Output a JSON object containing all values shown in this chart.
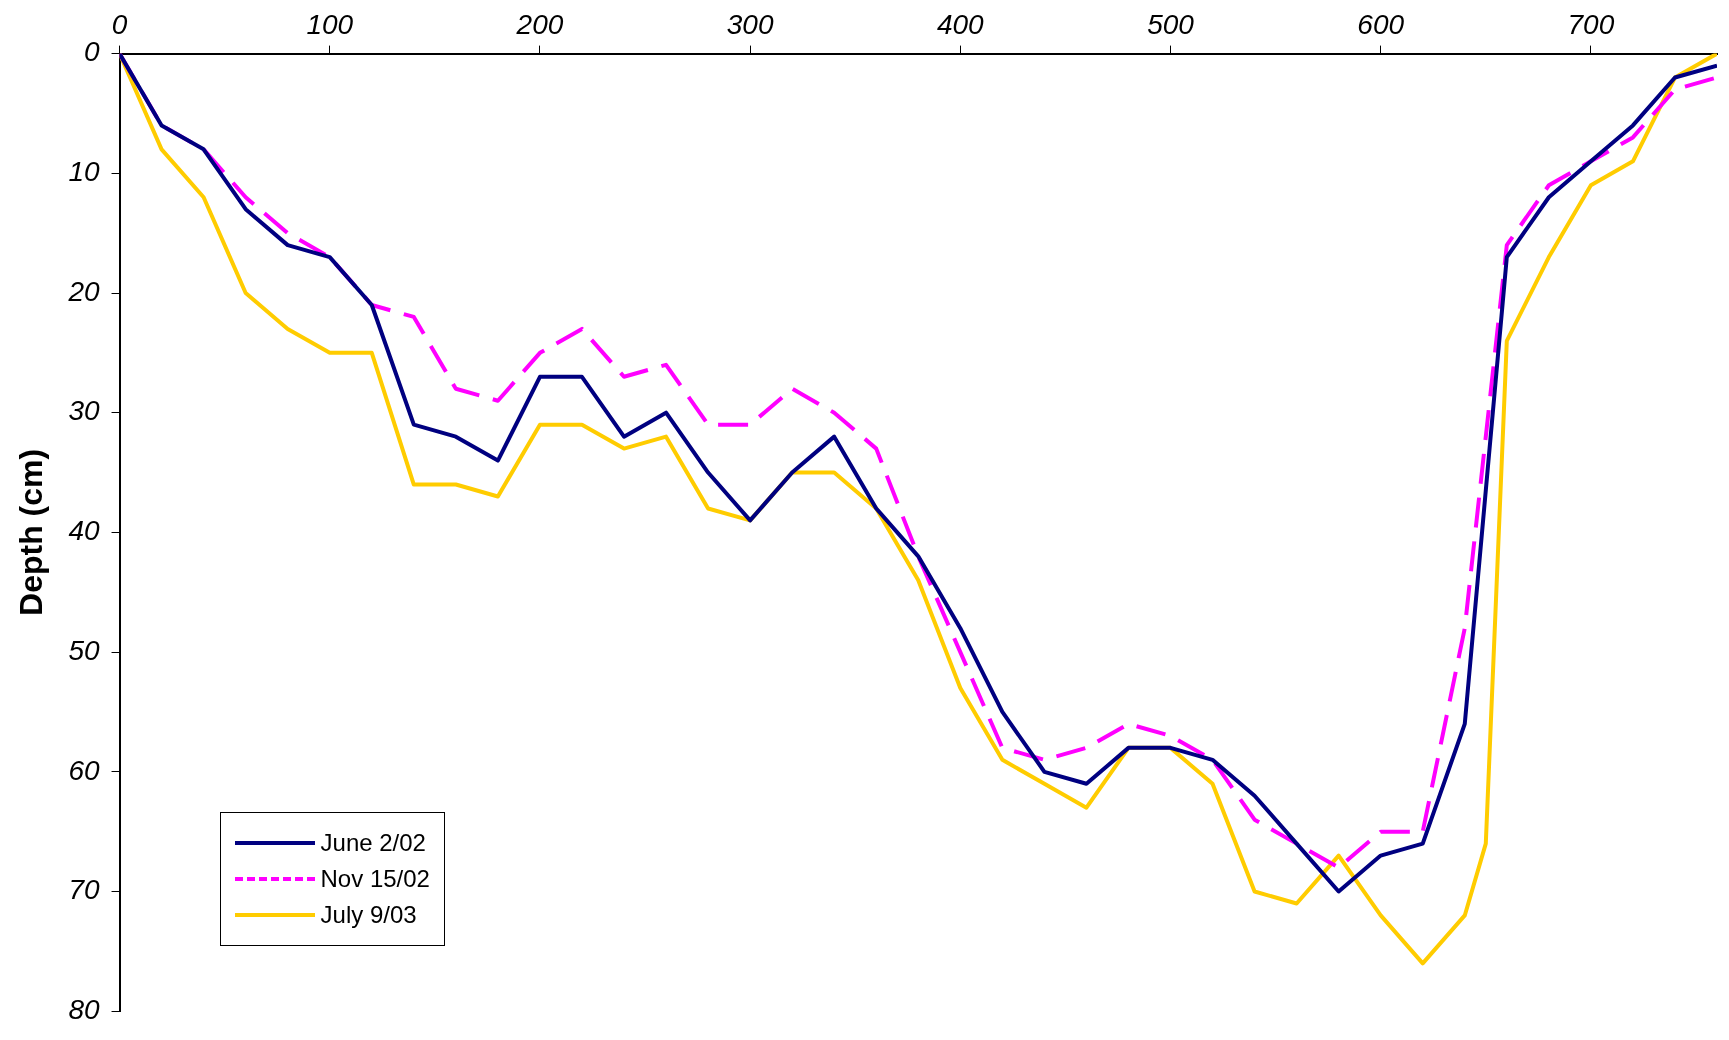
{
  "chart_data": {
    "type": "line",
    "ylabel": "Depth (cm)",
    "xlim": [
      0,
      760
    ],
    "xticks": [
      0,
      100,
      200,
      300,
      400,
      500,
      600,
      700
    ],
    "ylim": [
      80,
      0
    ],
    "yticks": [
      0,
      10,
      20,
      30,
      40,
      50,
      60,
      70,
      80
    ],
    "grid": false,
    "legend": "bottom left",
    "marker": "none",
    "line_style": "solid",
    "series": [
      {
        "name": "June 2/02",
        "color": "#000080",
        "x": [
          0,
          20,
          40,
          60,
          80,
          100,
          120,
          140,
          160,
          180,
          200,
          220,
          240,
          260,
          280,
          300,
          320,
          340,
          360,
          380,
          400,
          420,
          440,
          460,
          480,
          500,
          520,
          540,
          560,
          580,
          600,
          620,
          640,
          660,
          680,
          700,
          720,
          740,
          760
        ],
        "values": [
          0,
          6,
          8,
          13,
          16,
          17,
          21,
          31,
          32,
          34,
          27,
          27,
          32,
          30,
          35,
          39,
          35,
          32,
          38,
          42,
          48,
          55,
          60,
          61,
          58,
          58,
          59,
          62,
          66,
          70,
          67,
          66,
          56,
          17,
          12,
          9,
          6,
          2,
          1
        ]
      },
      {
        "name": "Nov 15/02",
        "color": "#ff00ff",
        "line_style": "dashed",
        "x": [
          0,
          20,
          40,
          60,
          80,
          100,
          120,
          140,
          160,
          180,
          200,
          220,
          240,
          260,
          280,
          300,
          320,
          340,
          360,
          380,
          400,
          420,
          440,
          460,
          480,
          500,
          520,
          540,
          560,
          580,
          600,
          620,
          640,
          660,
          680,
          700,
          720,
          740,
          760
        ],
        "values": [
          0,
          6,
          8,
          12,
          15,
          17,
          21,
          22,
          28,
          29,
          25,
          23,
          27,
          26,
          31,
          31,
          28,
          30,
          33,
          42,
          50,
          58,
          59,
          58,
          56,
          57,
          59,
          64,
          66,
          68,
          65,
          65,
          48,
          16,
          11,
          9,
          7,
          3,
          2
        ]
      },
      {
        "name": "July 9/03",
        "color": "#ffcc00",
        "x": [
          0,
          20,
          40,
          60,
          80,
          100,
          120,
          140,
          160,
          180,
          200,
          220,
          240,
          260,
          280,
          300,
          320,
          340,
          360,
          380,
          400,
          420,
          440,
          460,
          480,
          500,
          520,
          540,
          560,
          580,
          600,
          620,
          640,
          650,
          660,
          680,
          700,
          720,
          740,
          760
        ],
        "values": [
          0,
          8,
          12,
          20,
          23,
          25,
          25,
          36,
          36,
          37,
          31,
          31,
          33,
          32,
          38,
          39,
          35,
          35,
          38,
          44,
          53,
          59,
          61,
          63,
          58,
          58,
          61,
          70,
          71,
          67,
          72,
          76,
          72,
          66,
          24,
          17,
          11,
          9,
          2,
          0
        ]
      }
    ]
  }
}
